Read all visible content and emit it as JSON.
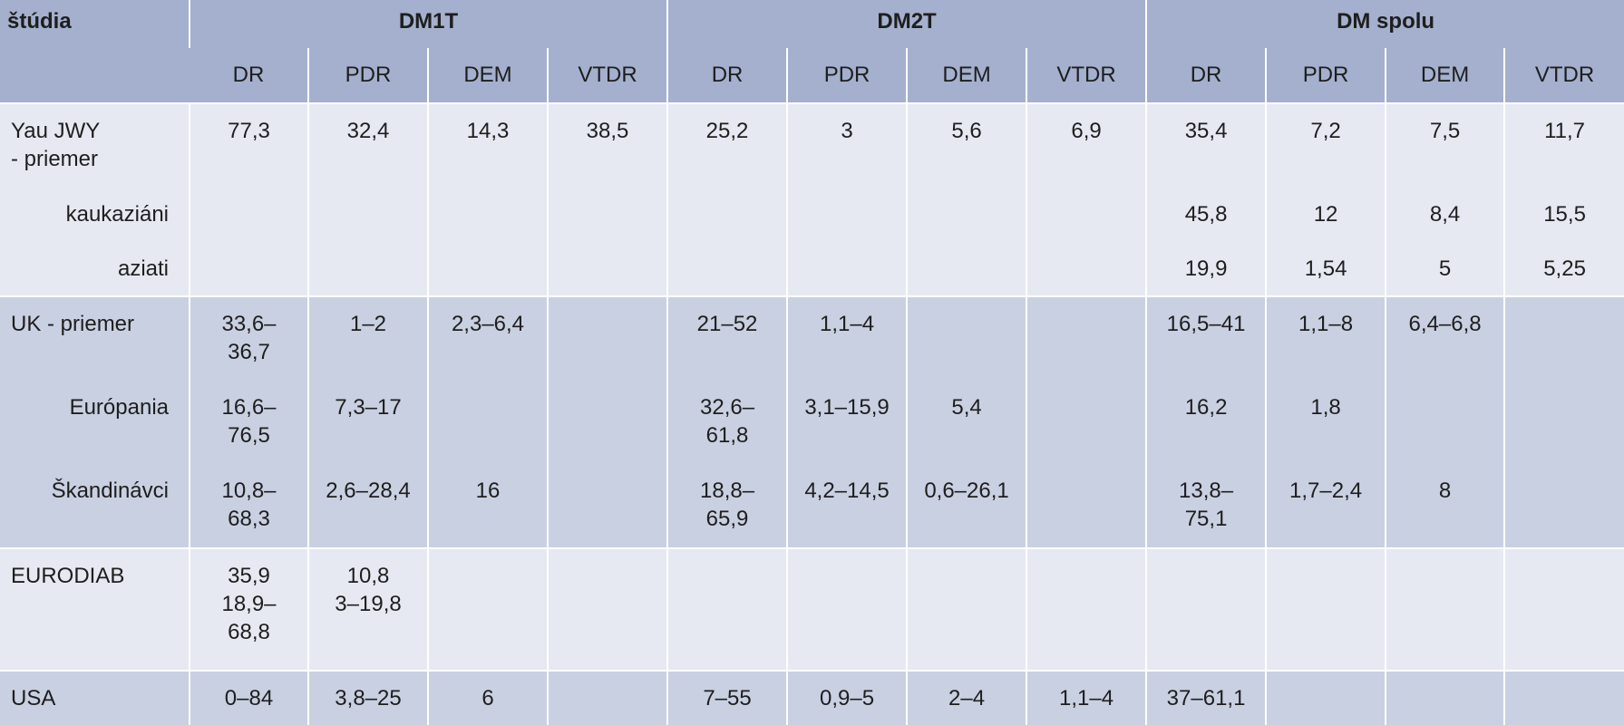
{
  "header": {
    "first": "štúdia",
    "groups": [
      "DM1T",
      "DM2T",
      "DM spolu"
    ],
    "subcolumns": [
      "DR",
      "PDR",
      "DEM",
      "VTDR",
      "DR",
      "PDR",
      "DEM",
      "VTDR",
      "DR",
      "PDR",
      "DEM",
      "VTDR"
    ]
  },
  "groups": [
    {
      "rows": [
        [
          "Yau JWY\n- priemer",
          "77,3",
          "32,4",
          "14,3",
          "38,5",
          "25,2",
          "3",
          "5,6",
          "6,9",
          "35,4",
          "7,2",
          "7,5",
          "11,7"
        ],
        [
          "kaukaziáni",
          null,
          null,
          null,
          null,
          null,
          null,
          null,
          null,
          "45,8",
          "12",
          "8,4",
          "15,5"
        ],
        [
          "aziati",
          null,
          null,
          null,
          null,
          null,
          null,
          null,
          null,
          "19,9",
          "1,54",
          "5",
          "5,25"
        ]
      ]
    },
    {
      "rows": [
        [
          "UK - priemer",
          "33,6–\n36,7",
          "1–2",
          "2,3–6,4",
          null,
          "21–52",
          "1,1–4",
          null,
          null,
          "16,5–41",
          "1,1–8",
          "6,4–6,8",
          null
        ],
        [
          "Európania",
          "16,6–\n76,5",
          "7,3–17",
          null,
          null,
          "32,6–\n61,8",
          "3,1–15,9",
          "5,4",
          null,
          "16,2",
          "1,8",
          null,
          null
        ],
        [
          "Škandinávci",
          "10,8–\n68,3",
          "2,6–28,4",
          "16",
          null,
          "18,8–\n65,9",
          "4,2–14,5",
          "0,6–26,1",
          null,
          "13,8–\n75,1",
          "1,7–2,4",
          "8",
          null
        ]
      ]
    },
    {
      "rows": [
        [
          "EURODIAB",
          "35,9\n18,9–\n68,8",
          "10,8\n3–19,8",
          null,
          null,
          null,
          null,
          null,
          null,
          null,
          null,
          null,
          null
        ]
      ]
    },
    {
      "rows": [
        [
          "USA",
          "0–84",
          "3,8–25",
          "6",
          null,
          "7–55",
          "0,9–5",
          "2–4",
          "1,1–4",
          "37–61,1",
          null,
          null,
          null
        ]
      ]
    }
  ]
}
